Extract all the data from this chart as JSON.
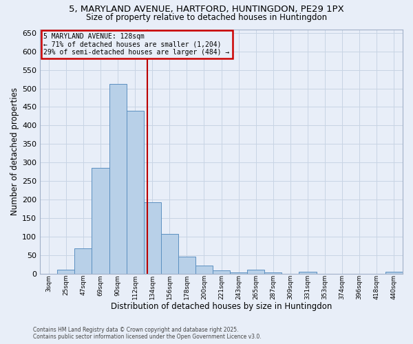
{
  "title_line1": "5, MARYLAND AVENUE, HARTFORD, HUNTINGDON, PE29 1PX",
  "title_line2": "Size of property relative to detached houses in Huntingdon",
  "xlabel": "Distribution of detached houses by size in Huntingdon",
  "ylabel": "Number of detached properties",
  "categories": [
    "3sqm",
    "25sqm",
    "47sqm",
    "69sqm",
    "90sqm",
    "112sqm",
    "134sqm",
    "156sqm",
    "178sqm",
    "200sqm",
    "221sqm",
    "243sqm",
    "265sqm",
    "287sqm",
    "309sqm",
    "331sqm",
    "353sqm",
    "374sqm",
    "396sqm",
    "418sqm",
    "440sqm"
  ],
  "values": [
    0,
    10,
    68,
    285,
    512,
    440,
    192,
    107,
    46,
    22,
    8,
    3,
    10,
    3,
    0,
    4,
    0,
    0,
    0,
    0,
    5
  ],
  "bar_color": "#b8d0e8",
  "bar_edge_color": "#5b8fc0",
  "grid_color": "#c8d4e4",
  "background_color": "#e8eef8",
  "vline_color": "#bb0000",
  "annotation_line1": "5 MARYLAND AVENUE: 128sqm",
  "annotation_line2": "← 71% of detached houses are smaller (1,204)",
  "annotation_line3": "29% of semi-detached houses are larger (484) →",
  "annotation_box_edgecolor": "#cc0000",
  "ylim": [
    0,
    660
  ],
  "yticks": [
    0,
    50,
    100,
    150,
    200,
    250,
    300,
    350,
    400,
    450,
    500,
    550,
    600,
    650
  ],
  "footer_line1": "Contains HM Land Registry data © Crown copyright and database right 2025.",
  "footer_line2": "Contains public sector information licensed under the Open Government Licence v3.0."
}
